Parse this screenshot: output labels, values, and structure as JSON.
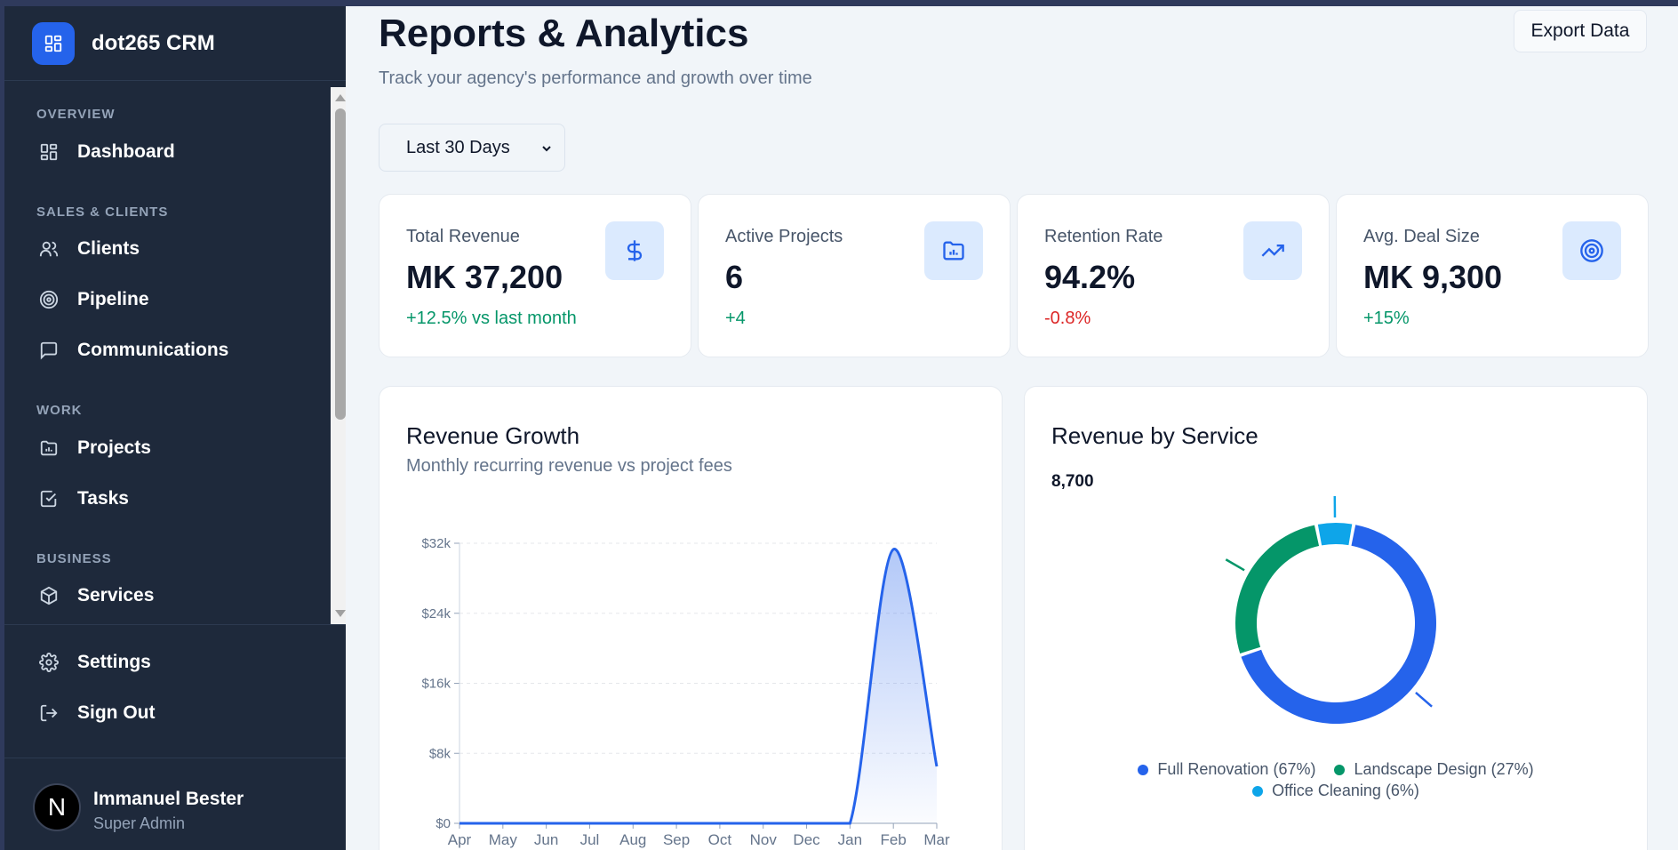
{
  "app": {
    "name": "dot265 CRM"
  },
  "sidebar": {
    "sections": [
      {
        "title": "OVERVIEW"
      },
      {
        "title": "SALES & CLIENTS"
      },
      {
        "title": "WORK"
      },
      {
        "title": "BUSINESS"
      }
    ],
    "items": [
      {
        "label": "Dashboard",
        "icon": "dashboard-icon"
      },
      {
        "label": "Clients",
        "icon": "users-icon"
      },
      {
        "label": "Pipeline",
        "icon": "target-icon"
      },
      {
        "label": "Communications",
        "icon": "message-icon"
      },
      {
        "label": "Projects",
        "icon": "folder-icon"
      },
      {
        "label": "Tasks",
        "icon": "check-square-icon"
      },
      {
        "label": "Services",
        "icon": "package-icon"
      }
    ],
    "bottom": [
      {
        "label": "Settings",
        "icon": "gear-icon"
      },
      {
        "label": "Sign Out",
        "icon": "sign-out-icon"
      }
    ],
    "user": {
      "initial": "N",
      "name": "Immanuel Bester",
      "role": "Super Admin"
    }
  },
  "header": {
    "title": "Reports & Analytics",
    "subtitle": "Track your agency's performance and growth over time",
    "export_label": "Export Data",
    "range_selected": "Last 30 Days"
  },
  "stats": [
    {
      "label": "Total Revenue",
      "value": "MK 37,200",
      "change": "+12.5% vs last month",
      "trend": "up",
      "icon": "dollar-icon"
    },
    {
      "label": "Active Projects",
      "value": "6",
      "change": "+4",
      "trend": "up",
      "icon": "folder-chart-icon"
    },
    {
      "label": "Retention Rate",
      "value": "94.2%",
      "change": "-0.8%",
      "trend": "down",
      "icon": "trending-up-icon"
    },
    {
      "label": "Avg. Deal Size",
      "value": "MK 9,300",
      "change": "+15%",
      "trend": "up",
      "icon": "target-icon"
    }
  ],
  "colors": {
    "accent": "#2563eb",
    "positive": "#059669",
    "negative": "#dc2626",
    "sidebar": "#1e293b"
  },
  "chart_data": [
    {
      "type": "area",
      "title": "Revenue Growth",
      "subtitle": "Monthly recurring revenue vs project fees",
      "x": [
        "Apr",
        "May",
        "Jun",
        "Jul",
        "Aug",
        "Sep",
        "Oct",
        "Nov",
        "Dec",
        "Jan",
        "Feb",
        "Mar"
      ],
      "series": [
        {
          "values": [
            0,
            0,
            0,
            0,
            0,
            0,
            0,
            0,
            0,
            0,
            31300,
            6500
          ],
          "color": "#2563eb"
        }
      ],
      "y_ticks": [
        "$0",
        "$8k",
        "$16k",
        "$24k",
        "$32k"
      ],
      "ylim": [
        0,
        32000
      ],
      "grid": true
    },
    {
      "type": "pie",
      "title": "Revenue by Service",
      "top_label": "8,700",
      "slices": [
        {
          "name": "Full Renovation",
          "label": "Full Renovation (67%)",
          "value": 67,
          "color": "#2563eb"
        },
        {
          "name": "Landscape Design",
          "label": "Landscape Design (27%)",
          "value": 27,
          "color": "#059669"
        },
        {
          "name": "Office Cleaning",
          "label": "Office Cleaning (6%)",
          "value": 6,
          "color": "#0ea5e9"
        }
      ]
    }
  ]
}
